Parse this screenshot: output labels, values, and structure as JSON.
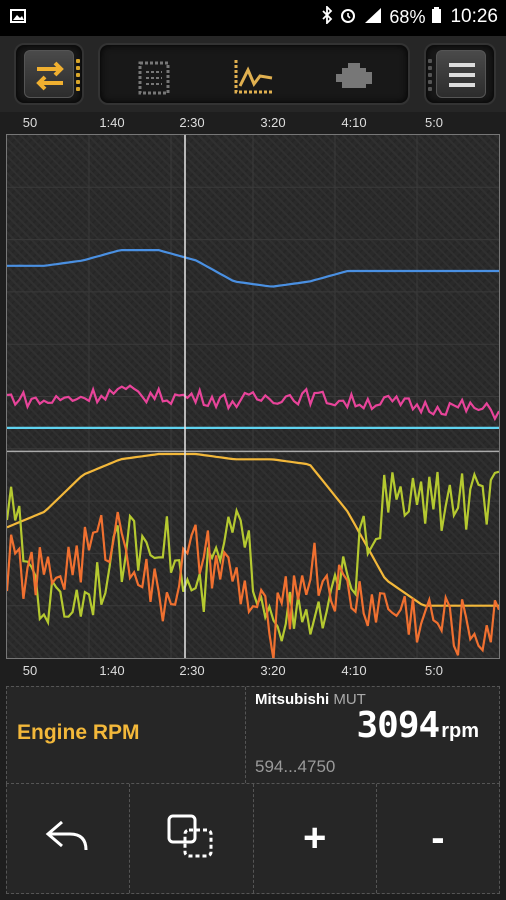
{
  "statusbar": {
    "battery": "68%",
    "time": "10:26",
    "icons": [
      "image-icon",
      "bluetooth-icon",
      "alarm-icon",
      "signal-icon",
      "battery-icon"
    ]
  },
  "toolbar": {
    "left_icon": "swap-arrows-icon",
    "center_icons": [
      "dashboard-icon",
      "graph-icon",
      "engine-icon"
    ],
    "right_icon": "menu-icon",
    "accent": "#d9a62a"
  },
  "time_axis": [
    "50",
    "1:40",
    "2:30",
    "3:20",
    "4:10",
    "5:0"
  ],
  "chart_data": {
    "type": "line",
    "x_ticks": [
      "50",
      "1:40",
      "2:30",
      "3:20",
      "4:10",
      "5:0"
    ],
    "cursor": "2:30",
    "series": [
      {
        "color": "#4a90e2",
        "values": [
          0.75,
          0.75,
          0.76,
          0.78,
          0.78,
          0.76,
          0.72,
          0.71,
          0.72,
          0.74,
          0.74,
          0.74,
          0.74,
          0.74
        ]
      },
      {
        "color": "#e8449a",
        "values": [
          0.5,
          0.49,
          0.5,
          0.51,
          0.5,
          0.5,
          0.49,
          0.5,
          0.5,
          0.49,
          0.49,
          0.48,
          0.48,
          0.47
        ]
      },
      {
        "color": "#5fd3f0",
        "values": [
          0.44,
          0.44,
          0.44,
          0.44,
          0.44,
          0.44,
          0.44,
          0.44,
          0.44,
          0.44,
          0.44,
          0.44,
          0.44,
          0.44
        ]
      },
      {
        "color": "#f3b83a",
        "values": [
          0.25,
          0.28,
          0.35,
          0.38,
          0.39,
          0.39,
          0.38,
          0.38,
          0.37,
          0.28,
          0.15,
          0.1,
          0.1,
          0.1
        ]
      },
      {
        "color": "#b5c930",
        "values": [
          0.3,
          0.1,
          0.12,
          0.2,
          0.25,
          0.1,
          0.25,
          0.1,
          0.05,
          0.15,
          0.3,
          0.3,
          0.3,
          0.3
        ]
      },
      {
        "color": "#f07030",
        "values": [
          0.18,
          0.15,
          0.2,
          0.25,
          0.1,
          0.2,
          0.15,
          0.05,
          0.18,
          0.12,
          0.1,
          0.08,
          0.06,
          0.06
        ]
      }
    ]
  },
  "info": {
    "parameter": "Engine RPM",
    "ecu_brand": "Mitsubishi",
    "ecu_protocol": "MUT",
    "value": "3094",
    "unit": "rpm",
    "range": "594...4750"
  },
  "actions": [
    {
      "name": "undo-button",
      "icon": "undo-arrow-icon"
    },
    {
      "name": "overlay-button",
      "icon": "overlay-squares-icon"
    },
    {
      "name": "zoom-in-button",
      "label": "+"
    },
    {
      "name": "zoom-out-button",
      "label": "-"
    }
  ]
}
